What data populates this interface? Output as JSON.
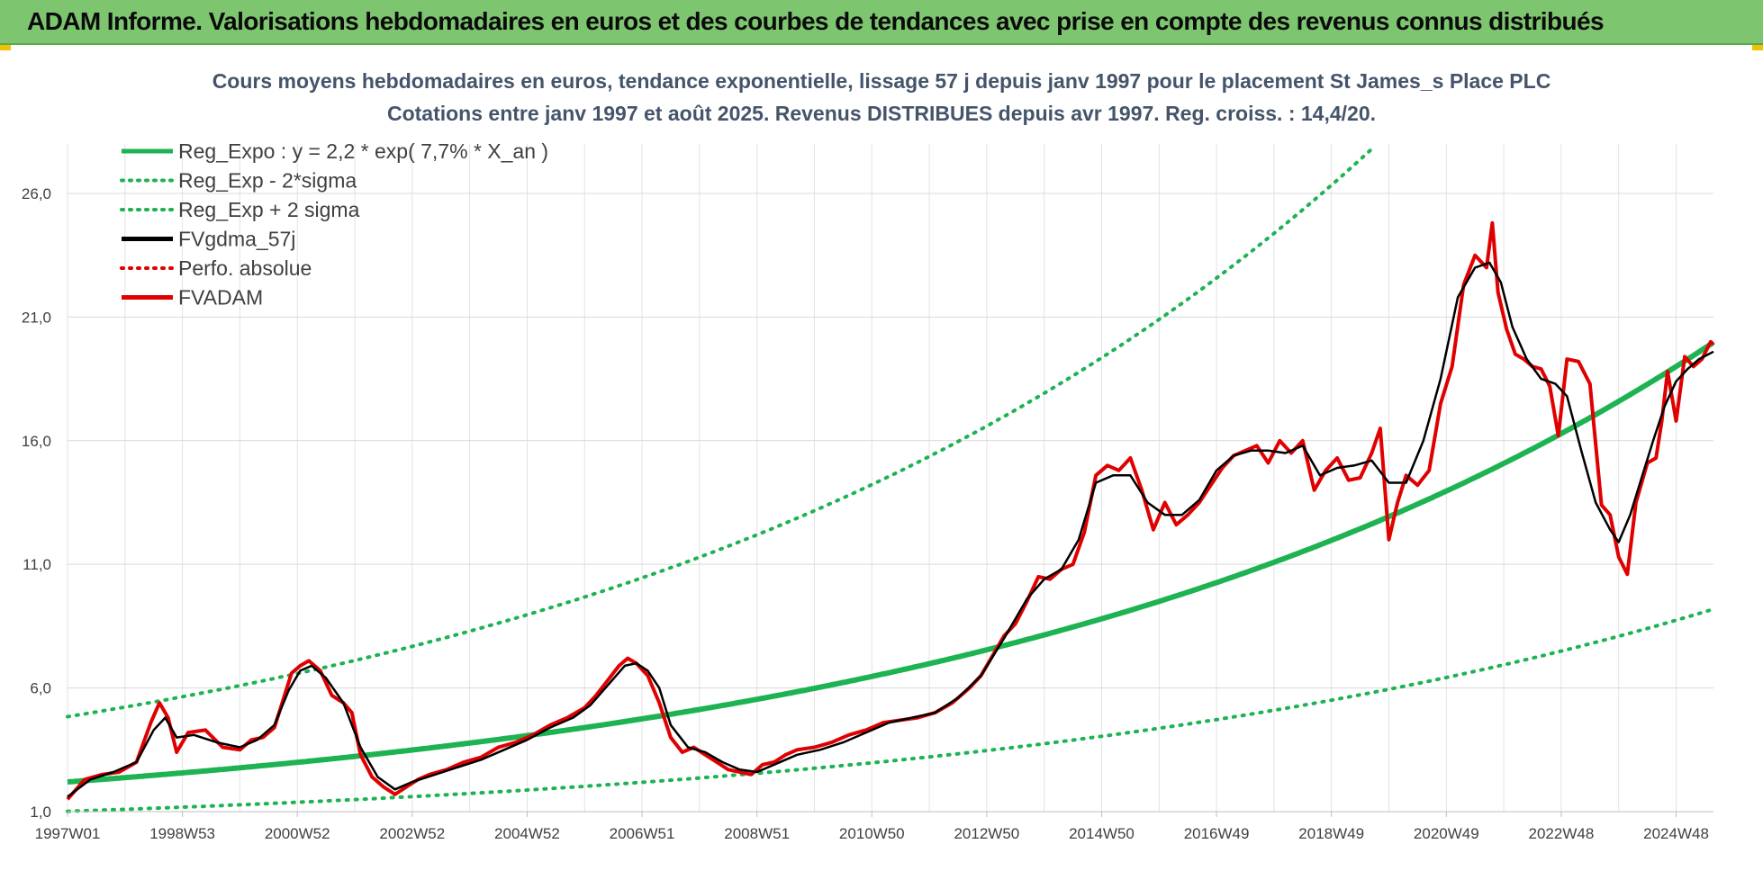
{
  "header": {
    "title": "ADAM Informe. Valorisations hebdomadaires en euros et des courbes de tendances avec prise en compte des revenus connus distribués",
    "color": "#7dc66f"
  },
  "chart_data": {
    "type": "line",
    "title_line1": "Cours moyens hebdomadaires en euros, tendance exponentielle, lissage 57 j depuis janv 1997  pour le placement St James_s Place PLC",
    "title_line2": "Cotations entre janv 1997 et août 2025.  Revenus DISTRIBUES depuis avr 1997. Reg. croiss. : 14,4/20.",
    "x_tick_labels": [
      "1997W01",
      "1998W53",
      "2000W52",
      "2002W52",
      "2004W52",
      "2006W51",
      "2008W51",
      "2010W50",
      "2012W50",
      "2014W50",
      "2016W49",
      "2018W49",
      "2020W49",
      "2022W48",
      "2024W48"
    ],
    "x_tick_years": [
      1997.0,
      1999.0,
      2001.0,
      2003.0,
      2005.0,
      2007.0,
      2009.0,
      2011.0,
      2013.0,
      2015.0,
      2017.0,
      2019.0,
      2021.0,
      2023.0,
      2025.0
    ],
    "xlim": [
      1997.0,
      2025.65
    ],
    "y_ticks": [
      1.0,
      6.0,
      11.0,
      16.0,
      21.0,
      26.0
    ],
    "y_tick_labels": [
      "1,0",
      "6,0",
      "11,0",
      "16,0",
      "21,0",
      "26,0"
    ],
    "ylim": [
      1.0,
      28.0
    ],
    "grid": true,
    "legend_position": "top-left",
    "legend": [
      {
        "label": "Reg_Expo : y = 2,2 * exp( 7,7% *  X_an )",
        "color": "#1db352",
        "style": "solid"
      },
      {
        "label": "Reg_Exp - 2*sigma",
        "color": "#1db352",
        "style": "dotted"
      },
      {
        "label": "Reg_Exp + 2 sigma",
        "color": "#1db352",
        "style": "dotted"
      },
      {
        "label": "FVgdma_57j",
        "color": "#000000",
        "style": "solid"
      },
      {
        "label": "Perfo. absolue",
        "color": "#e00000",
        "style": "dotted"
      },
      {
        "label": "FVADAM",
        "color": "#e00000",
        "style": "solid"
      }
    ],
    "regression": {
      "a": 2.2,
      "rate": 0.077,
      "upper_factor": 2.2,
      "lower_factor": 0.46
    },
    "series": [
      {
        "name": "FVADAM",
        "color": "#e00000",
        "x": [
          1997.0,
          1997.3,
          1997.6,
          1997.9,
          1998.2,
          1998.45,
          1998.6,
          1998.75,
          1998.9,
          1999.1,
          1999.4,
          1999.7,
          2000.0,
          2000.2,
          2000.4,
          2000.6,
          2000.75,
          2000.9,
          2001.05,
          2001.2,
          2001.4,
          2001.6,
          2001.8,
          2001.95,
          2002.1,
          2002.3,
          2002.5,
          2002.7,
          2002.9,
          2003.1,
          2003.3,
          2003.6,
          2003.9,
          2004.2,
          2004.5,
          2004.8,
          2005.1,
          2005.4,
          2005.7,
          2006.0,
          2006.2,
          2006.4,
          2006.6,
          2006.75,
          2006.9,
          2007.1,
          2007.3,
          2007.5,
          2007.7,
          2007.9,
          2008.1,
          2008.3,
          2008.5,
          2008.7,
          2008.9,
          2009.1,
          2009.3,
          2009.5,
          2009.7,
          2010.0,
          2010.3,
          2010.6,
          2010.9,
          2011.2,
          2011.5,
          2011.8,
          2012.1,
          2012.4,
          2012.7,
          2012.9,
          2013.1,
          2013.3,
          2013.5,
          2013.7,
          2013.9,
          2014.1,
          2014.3,
          2014.5,
          2014.7,
          2014.9,
          2015.1,
          2015.3,
          2015.5,
          2015.7,
          2015.9,
          2016.1,
          2016.3,
          2016.5,
          2016.7,
          2016.9,
          2017.1,
          2017.3,
          2017.5,
          2017.7,
          2017.9,
          2018.1,
          2018.3,
          2018.5,
          2018.7,
          2018.9,
          2019.1,
          2019.3,
          2019.5,
          2019.7,
          2019.85,
          2020.0,
          2020.15,
          2020.3,
          2020.5,
          2020.7,
          2020.9,
          2021.1,
          2021.3,
          2021.5,
          2021.7,
          2021.8,
          2021.9,
          2022.05,
          2022.2,
          2022.35,
          2022.5,
          2022.65,
          2022.8,
          2022.95,
          2023.1,
          2023.3,
          2023.5,
          2023.7,
          2023.85,
          2024.0,
          2024.15,
          2024.3,
          2024.5,
          2024.65,
          2024.75,
          2024.85,
          2025.0,
          2025.15,
          2025.3,
          2025.45,
          2025.6,
          2025.65
        ],
        "y": [
          1.5,
          2.3,
          2.5,
          2.6,
          3.0,
          4.6,
          5.4,
          4.8,
          3.4,
          4.2,
          4.3,
          3.6,
          3.5,
          3.9,
          4.0,
          4.4,
          5.5,
          6.6,
          6.9,
          7.1,
          6.7,
          5.7,
          5.4,
          5.0,
          3.3,
          2.4,
          2.0,
          1.7,
          2.0,
          2.3,
          2.5,
          2.7,
          3.0,
          3.2,
          3.6,
          3.8,
          4.1,
          4.5,
          4.8,
          5.2,
          5.7,
          6.3,
          6.9,
          7.2,
          7.0,
          6.5,
          5.4,
          4.0,
          3.4,
          3.6,
          3.3,
          3.0,
          2.7,
          2.6,
          2.5,
          2.9,
          3.0,
          3.3,
          3.5,
          3.6,
          3.8,
          4.1,
          4.3,
          4.6,
          4.7,
          4.8,
          5.0,
          5.4,
          6.0,
          6.5,
          7.3,
          8.1,
          8.6,
          9.5,
          10.5,
          10.4,
          10.8,
          11.0,
          12.3,
          14.6,
          15.0,
          14.8,
          15.3,
          14.0,
          12.4,
          13.5,
          12.6,
          13.0,
          13.5,
          14.2,
          14.9,
          15.4,
          15.6,
          15.8,
          15.1,
          16.0,
          15.5,
          16.0,
          14.0,
          14.8,
          15.3,
          14.4,
          14.5,
          15.5,
          16.5,
          12.0,
          13.5,
          14.6,
          14.2,
          14.8,
          17.5,
          19.0,
          22.3,
          23.5,
          23.0,
          24.8,
          22.0,
          20.5,
          19.5,
          19.3,
          19.0,
          18.9,
          18.2,
          16.2,
          19.3,
          19.2,
          18.3,
          13.4,
          13.0,
          11.3,
          10.6,
          13.5,
          15.1,
          15.3,
          16.8,
          18.8,
          16.8,
          19.4,
          19.0,
          19.3,
          20.0,
          19.9
        ]
      },
      {
        "name": "FVgdma_57j",
        "color": "#000000",
        "x": [
          1997.0,
          1997.4,
          1997.8,
          1998.2,
          1998.5,
          1998.7,
          1998.9,
          1999.2,
          1999.6,
          2000.0,
          2000.3,
          2000.6,
          2000.85,
          2001.05,
          2001.25,
          2001.5,
          2001.8,
          2002.1,
          2002.4,
          2002.7,
          2003.0,
          2003.4,
          2003.8,
          2004.2,
          2004.6,
          2005.0,
          2005.4,
          2005.8,
          2006.1,
          2006.4,
          2006.7,
          2006.9,
          2007.1,
          2007.3,
          2007.5,
          2007.8,
          2008.1,
          2008.4,
          2008.7,
          2009.0,
          2009.3,
          2009.7,
          2010.1,
          2010.5,
          2010.9,
          2011.3,
          2011.7,
          2012.1,
          2012.5,
          2012.9,
          2013.3,
          2013.7,
          2014.0,
          2014.3,
          2014.6,
          2014.9,
          2015.2,
          2015.5,
          2015.8,
          2016.1,
          2016.4,
          2016.7,
          2017.0,
          2017.3,
          2017.6,
          2017.9,
          2018.2,
          2018.5,
          2018.8,
          2019.1,
          2019.4,
          2019.7,
          2020.0,
          2020.3,
          2020.6,
          2020.9,
          2021.2,
          2021.5,
          2021.75,
          2021.95,
          2022.15,
          2022.4,
          2022.65,
          2022.9,
          2023.1,
          2023.35,
          2023.6,
          2023.85,
          2024.0,
          2024.2,
          2024.4,
          2024.6,
          2024.8,
          2025.0,
          2025.2,
          2025.4,
          2025.65
        ],
        "y": [
          1.6,
          2.3,
          2.6,
          3.0,
          4.3,
          4.8,
          4.0,
          4.1,
          3.8,
          3.6,
          3.9,
          4.5,
          5.9,
          6.7,
          6.9,
          6.4,
          5.4,
          3.6,
          2.4,
          1.9,
          2.2,
          2.5,
          2.8,
          3.1,
          3.5,
          3.9,
          4.4,
          4.8,
          5.3,
          6.1,
          6.9,
          7.0,
          6.7,
          6.0,
          4.5,
          3.6,
          3.4,
          3.0,
          2.7,
          2.6,
          2.9,
          3.3,
          3.5,
          3.8,
          4.2,
          4.6,
          4.8,
          5.0,
          5.6,
          6.5,
          8.0,
          9.6,
          10.4,
          10.8,
          12.0,
          14.3,
          14.6,
          14.6,
          13.5,
          13.0,
          13.0,
          13.6,
          14.8,
          15.4,
          15.6,
          15.6,
          15.5,
          15.8,
          14.6,
          14.9,
          15.0,
          15.2,
          14.3,
          14.3,
          16.0,
          18.5,
          21.8,
          23.0,
          23.2,
          22.4,
          20.6,
          19.3,
          18.5,
          18.3,
          17.8,
          15.6,
          13.5,
          12.4,
          11.9,
          13.0,
          14.5,
          16.0,
          17.4,
          18.4,
          18.9,
          19.3,
          19.6
        ]
      }
    ]
  }
}
